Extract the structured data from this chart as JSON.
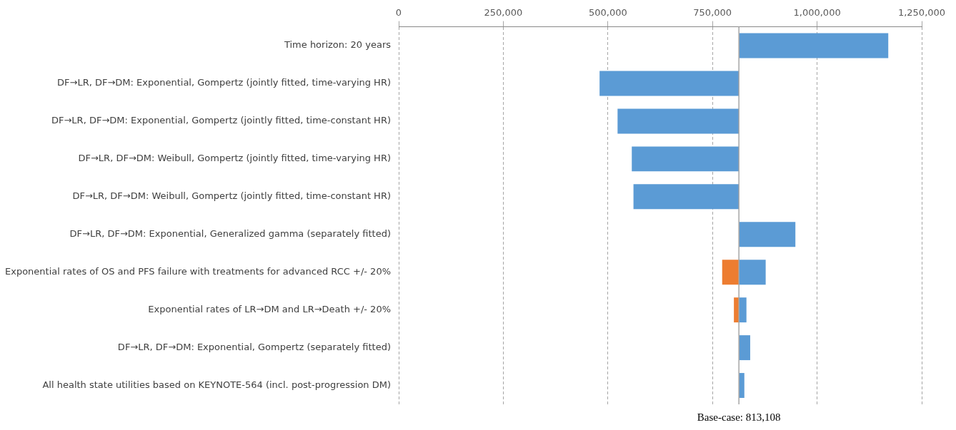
{
  "chart_data": {
    "type": "bar",
    "orientation": "horizontal",
    "categories": [
      "Time horizon: 20 years",
      "DF→LR, DF→DM: Exponential, Gompertz (jointly fitted, time-varying HR)",
      "DF→LR, DF→DM: Exponential, Gompertz (jointly fitted, time-constant HR)",
      "DF→LR, DF→DM: Weibull, Gompertz (jointly fitted, time-varying HR)",
      "DF→LR, DF→DM: Weibull, Gompertz (jointly fitted, time-constant HR)",
      "DF→LR, DF→DM: Exponential, Generalized gamma (separately fitted)",
      "Exponential rates of OS and PFS failure with treatments for advanced RCC +/- 20%",
      "Exponential rates of LR→DM and LR→Death +/- 20%",
      "DF→LR, DF→DM: Exponential, Gompertz (separately fitted)",
      "All health state utilities based on KEYNOTE-564 (incl. post-progression DM)"
    ],
    "series": [
      {
        "color": "#5b9bd5",
        "base": [
          813108,
          813108,
          813108,
          813108,
          813108,
          813108,
          813108,
          813108,
          813108,
          813108
        ],
        "values": [
          357000,
          -333000,
          -290000,
          -256000,
          -252000,
          135000,
          64000,
          18000,
          27000,
          13000
        ]
      },
      {
        "color": "#ed7d31",
        "base": [
          null,
          null,
          null,
          null,
          null,
          null,
          813108,
          813108,
          null,
          null
        ],
        "values": [
          null,
          null,
          null,
          null,
          null,
          null,
          -40000,
          -12000,
          null,
          null
        ]
      }
    ],
    "xlim": [
      0,
      1250000
    ],
    "xticks": [
      0,
      {
        "value": 250000,
        "label": "250,000"
      },
      {
        "value": 500000,
        "label": "500,000"
      },
      {
        "value": 750000,
        "label": "750,000"
      },
      {
        "value": 1000000,
        "label": "1,000,000"
      },
      {
        "value": 1250000,
        "label": "1,250,000"
      }
    ],
    "grid": "x",
    "legend": false,
    "ref_lines": [
      {
        "axis": "x",
        "value": 813108,
        "label": "Base-case: 813,108",
        "color": "#a6a6a6"
      }
    ]
  }
}
